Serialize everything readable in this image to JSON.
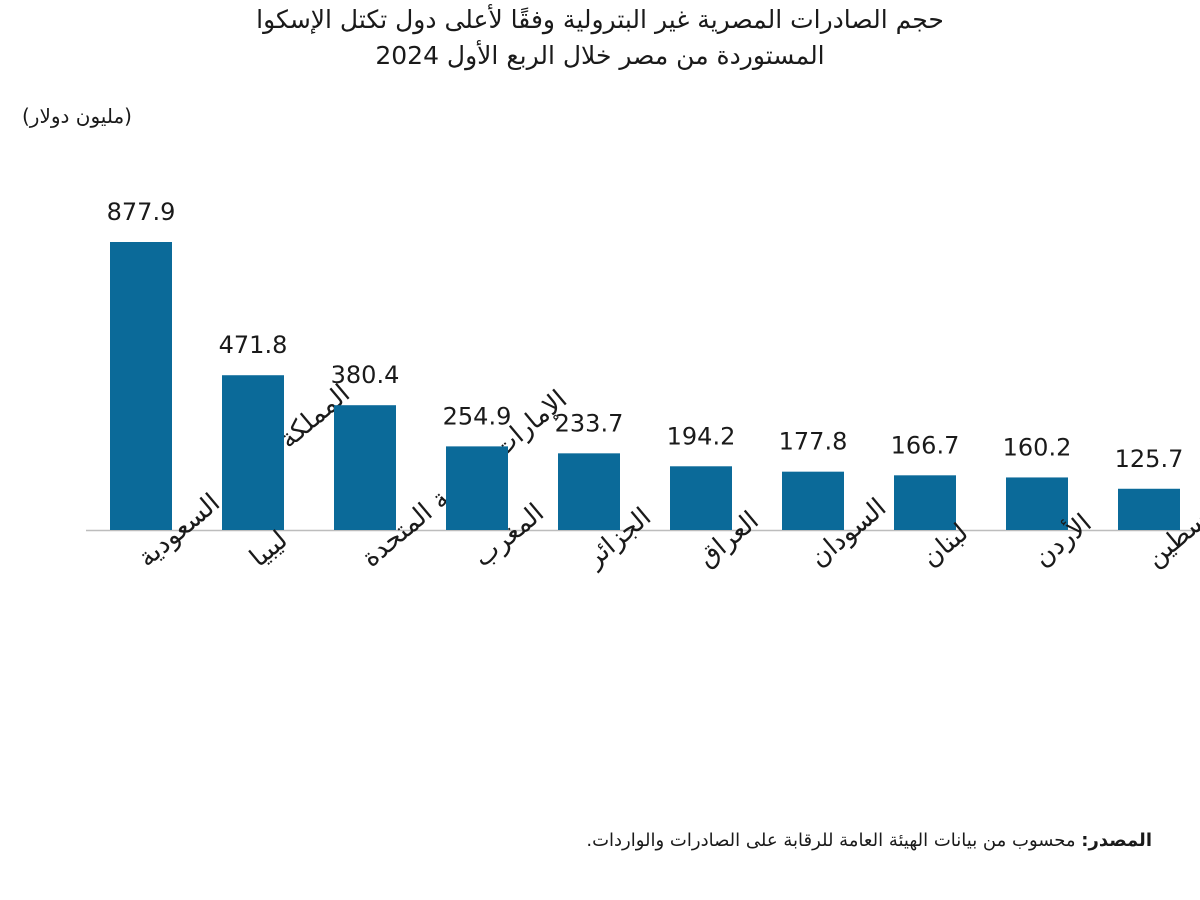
{
  "chart_data": {
    "type": "bar",
    "title_lines": [
      "حجم الصادرات المصرية غير البترولية وفقًا لأعلى دول تكتل الإسكوا",
      "المستوردة من مصر خلال الربع الأول 2024"
    ],
    "unit_label": "(مليون دولار)",
    "categories": [
      "المملكة العربية السعودية",
      "ليبيا",
      "الإمارات العربية المتحدة",
      "المغرب",
      "الجزائر",
      "العراق",
      "السودان",
      "لبنان",
      "الأردن",
      "فلسطين"
    ],
    "values": [
      877.9,
      471.8,
      380.4,
      254.9,
      233.7,
      194.2,
      177.8,
      166.7,
      160.2,
      125.7
    ],
    "value_labels": [
      "877.9",
      "471.8",
      "380.4",
      "254.9",
      "233.7",
      "194.2",
      "177.8",
      "166.7",
      "160.2",
      "125.7"
    ],
    "ylim": [
      0,
      877.9
    ],
    "grid": false,
    "bar_color": "#0b6a99",
    "baseline_color": "#bdbdbd"
  },
  "source": {
    "label": "المصدر:",
    "text": "محسوب من بيانات الهيئة العامة للرقابة على الصادرات والواردات."
  }
}
